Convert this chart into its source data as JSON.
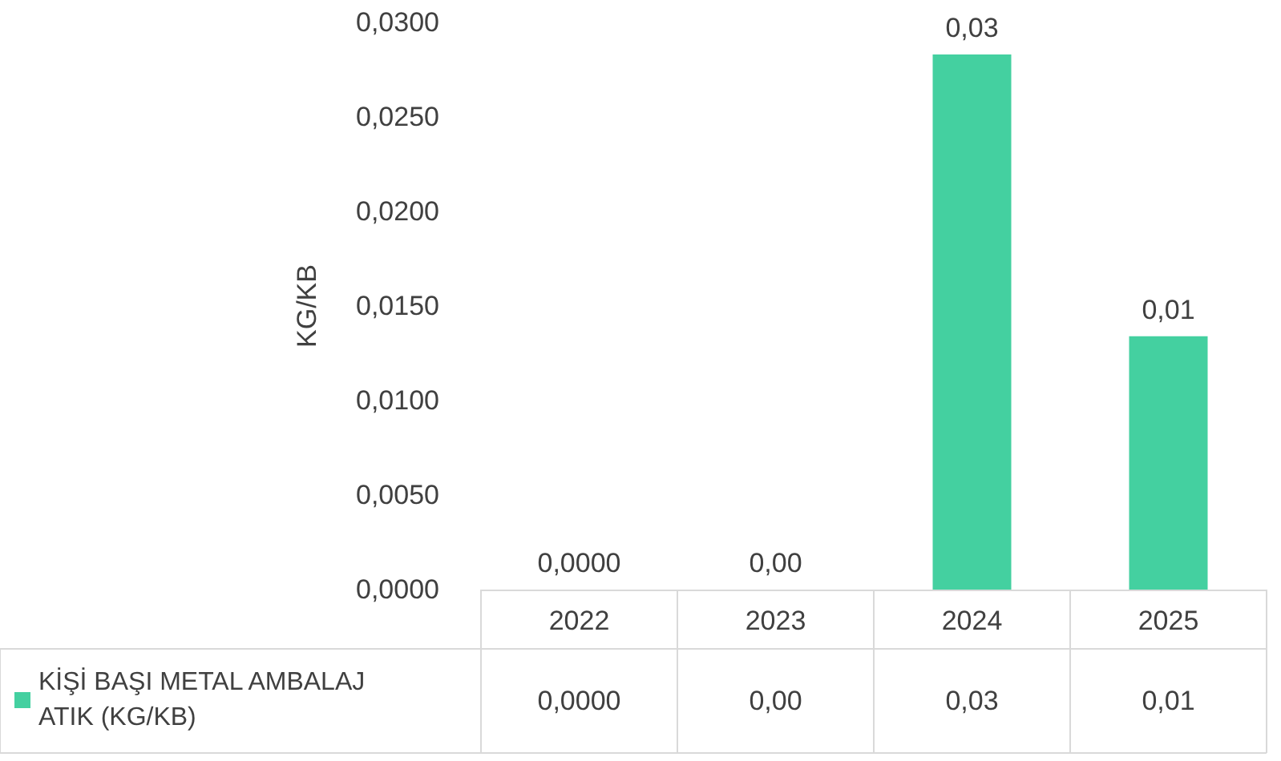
{
  "chart_data": {
    "type": "bar",
    "ylabel": "KG/KB",
    "categories": [
      "2022",
      "2023",
      "2024",
      "2025"
    ],
    "series": [
      {
        "name": "KİŞİ BAŞI METAL AMBALAJ ATIK (KG/KB)",
        "color": "#44d0a0",
        "values": [
          0,
          0,
          0.0283,
          0.0134
        ],
        "value_labels": [
          "0,0000",
          "0,00",
          "0,03",
          "0,01"
        ]
      }
    ],
    "ylim": [
      0,
      0.03
    ],
    "yticks": [
      {
        "value": 0,
        "label": "0,0000"
      },
      {
        "value": 0.005,
        "label": "0,0050"
      },
      {
        "value": 0.01,
        "label": "0,0100"
      },
      {
        "value": 0.015,
        "label": "0,0150"
      },
      {
        "value": 0.02,
        "label": "0,0200"
      },
      {
        "value": 0.025,
        "label": "0,0250"
      },
      {
        "value": 0.03,
        "label": "0,0300"
      }
    ],
    "grid": false,
    "legend": "bottom left"
  }
}
